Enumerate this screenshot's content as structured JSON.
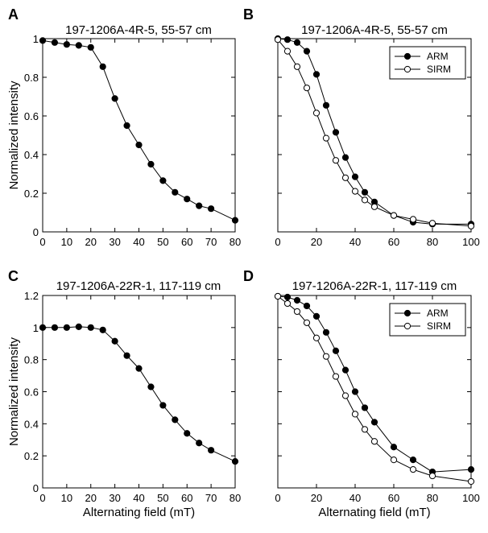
{
  "xlabel": "Alternating field (mT)",
  "ylabel": "Normalized intensity",
  "chart_data": [
    {
      "panel": "A",
      "type": "line",
      "title": "197-1206A-4R-5, 55-57 cm",
      "xlim": [
        0,
        80
      ],
      "ylim": [
        0,
        1
      ],
      "xticks": [
        0,
        10,
        20,
        30,
        40,
        50,
        60,
        70,
        80
      ],
      "yticks": [
        0,
        0.2,
        0.4,
        0.6,
        0.8,
        1
      ],
      "ytick_labels": [
        "0",
        "0.2",
        "0.4",
        "0.6",
        "0.8",
        "1"
      ],
      "show_y_tick_labels": true,
      "show_ylabel": true,
      "show_xlabel": false,
      "legend": null,
      "series": [
        {
          "name": "",
          "marker": "filled",
          "x": [
            0,
            5,
            10,
            15,
            20,
            25,
            30,
            35,
            40,
            45,
            50,
            55,
            60,
            65,
            70,
            80
          ],
          "y": [
            0.99,
            0.98,
            0.97,
            0.965,
            0.955,
            0.855,
            0.69,
            0.55,
            0.45,
            0.35,
            0.265,
            0.205,
            0.17,
            0.135,
            0.12,
            0.06
          ]
        }
      ]
    },
    {
      "panel": "B",
      "type": "line",
      "title": "197-1206A-4R-5, 55-57 cm",
      "xlim": [
        0,
        100
      ],
      "ylim": [
        0,
        1
      ],
      "xticks": [
        0,
        20,
        40,
        60,
        80,
        100
      ],
      "yticks": [
        0,
        0.2,
        0.4,
        0.6,
        0.8,
        1
      ],
      "show_y_tick_labels": false,
      "show_ylabel": false,
      "show_xlabel": false,
      "legend": "top-right",
      "series": [
        {
          "name": "ARM",
          "marker": "filled",
          "x": [
            0,
            5,
            10,
            15,
            20,
            25,
            30,
            35,
            40,
            45,
            50,
            60,
            70,
            80,
            100
          ],
          "y": [
            1.0,
            0.995,
            0.98,
            0.935,
            0.815,
            0.655,
            0.515,
            0.385,
            0.285,
            0.205,
            0.155,
            0.085,
            0.05,
            0.04,
            0.04
          ]
        },
        {
          "name": "SIRM",
          "marker": "open",
          "x": [
            0,
            5,
            10,
            15,
            20,
            25,
            30,
            35,
            40,
            45,
            50,
            60,
            70,
            80,
            100
          ],
          "y": [
            0.995,
            0.935,
            0.855,
            0.745,
            0.615,
            0.485,
            0.37,
            0.28,
            0.21,
            0.165,
            0.13,
            0.085,
            0.065,
            0.045,
            0.03
          ]
        }
      ]
    },
    {
      "panel": "C",
      "type": "line",
      "title": "197-1206A-22R-1, 117-119 cm",
      "xlim": [
        0,
        80
      ],
      "ylim": [
        0,
        1.2
      ],
      "xticks": [
        0,
        10,
        20,
        30,
        40,
        50,
        60,
        70,
        80
      ],
      "yticks": [
        0,
        0.2,
        0.4,
        0.6,
        0.8,
        1,
        1.2
      ],
      "ytick_labels": [
        "0",
        "0.2",
        "0.4",
        "0.6",
        "0.8",
        "1",
        "1.2"
      ],
      "show_y_tick_labels": true,
      "show_ylabel": true,
      "show_xlabel": true,
      "legend": null,
      "series": [
        {
          "name": "",
          "marker": "filled",
          "x": [
            0,
            5,
            10,
            15,
            20,
            25,
            30,
            35,
            40,
            45,
            50,
            55,
            60,
            65,
            70,
            80
          ],
          "y": [
            1.0,
            1.0,
            1.0,
            1.005,
            1.0,
            0.985,
            0.915,
            0.825,
            0.745,
            0.63,
            0.515,
            0.425,
            0.34,
            0.28,
            0.235,
            0.165
          ]
        }
      ]
    },
    {
      "panel": "D",
      "type": "line",
      "title": "197-1206A-22R-1, 117-119 cm",
      "xlim": [
        0,
        100
      ],
      "ylim": [
        0,
        1.2
      ],
      "xticks": [
        0,
        20,
        40,
        60,
        80,
        100
      ],
      "yticks": [
        0,
        0.2,
        0.4,
        0.6,
        0.8,
        1,
        1.2
      ],
      "show_y_tick_labels": false,
      "show_ylabel": false,
      "show_xlabel": true,
      "legend": "top-right",
      "series": [
        {
          "name": "ARM",
          "marker": "filled",
          "x": [
            0,
            5,
            10,
            15,
            20,
            25,
            30,
            35,
            40,
            45,
            50,
            60,
            70,
            80,
            100
          ],
          "y": [
            1.195,
            1.19,
            1.17,
            1.135,
            1.07,
            0.97,
            0.855,
            0.735,
            0.6,
            0.5,
            0.41,
            0.255,
            0.175,
            0.1,
            0.115
          ]
        },
        {
          "name": "SIRM",
          "marker": "open",
          "x": [
            0,
            5,
            10,
            15,
            20,
            25,
            30,
            35,
            40,
            45,
            50,
            60,
            70,
            80,
            100
          ],
          "y": [
            1.195,
            1.15,
            1.1,
            1.03,
            0.935,
            0.82,
            0.695,
            0.575,
            0.46,
            0.365,
            0.29,
            0.175,
            0.115,
            0.075,
            0.04
          ]
        }
      ]
    }
  ]
}
